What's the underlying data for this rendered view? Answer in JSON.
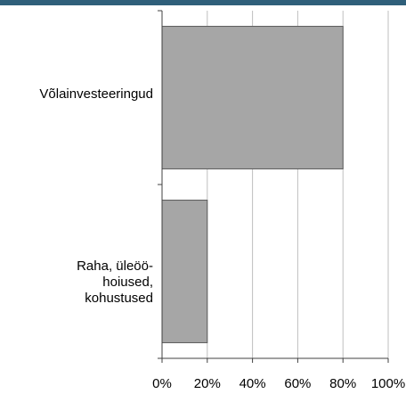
{
  "colors": {
    "top_bar": "#2f5f7a",
    "bar_fill": "#a6a6a6",
    "bar_stroke": "#595959",
    "grid": "#bfbfbf",
    "axis": "#404040"
  },
  "chart_data": {
    "type": "bar",
    "orientation": "horizontal",
    "categories": [
      "Võlainvesteeringud",
      "Raha, üleöö-hoiused, kohustused"
    ],
    "category_lines": [
      [
        "Võlainvesteeringud"
      ],
      [
        "Raha, üleöö-",
        "hoiused,",
        "kohustused"
      ]
    ],
    "values": [
      80,
      20
    ],
    "xlim": [
      0,
      100
    ],
    "x_ticks": [
      0,
      20,
      40,
      60,
      80,
      100
    ],
    "x_tick_labels": [
      "0%",
      "20%",
      "40%",
      "60%",
      "80%",
      "100%"
    ],
    "grid": true,
    "legend": "none"
  }
}
